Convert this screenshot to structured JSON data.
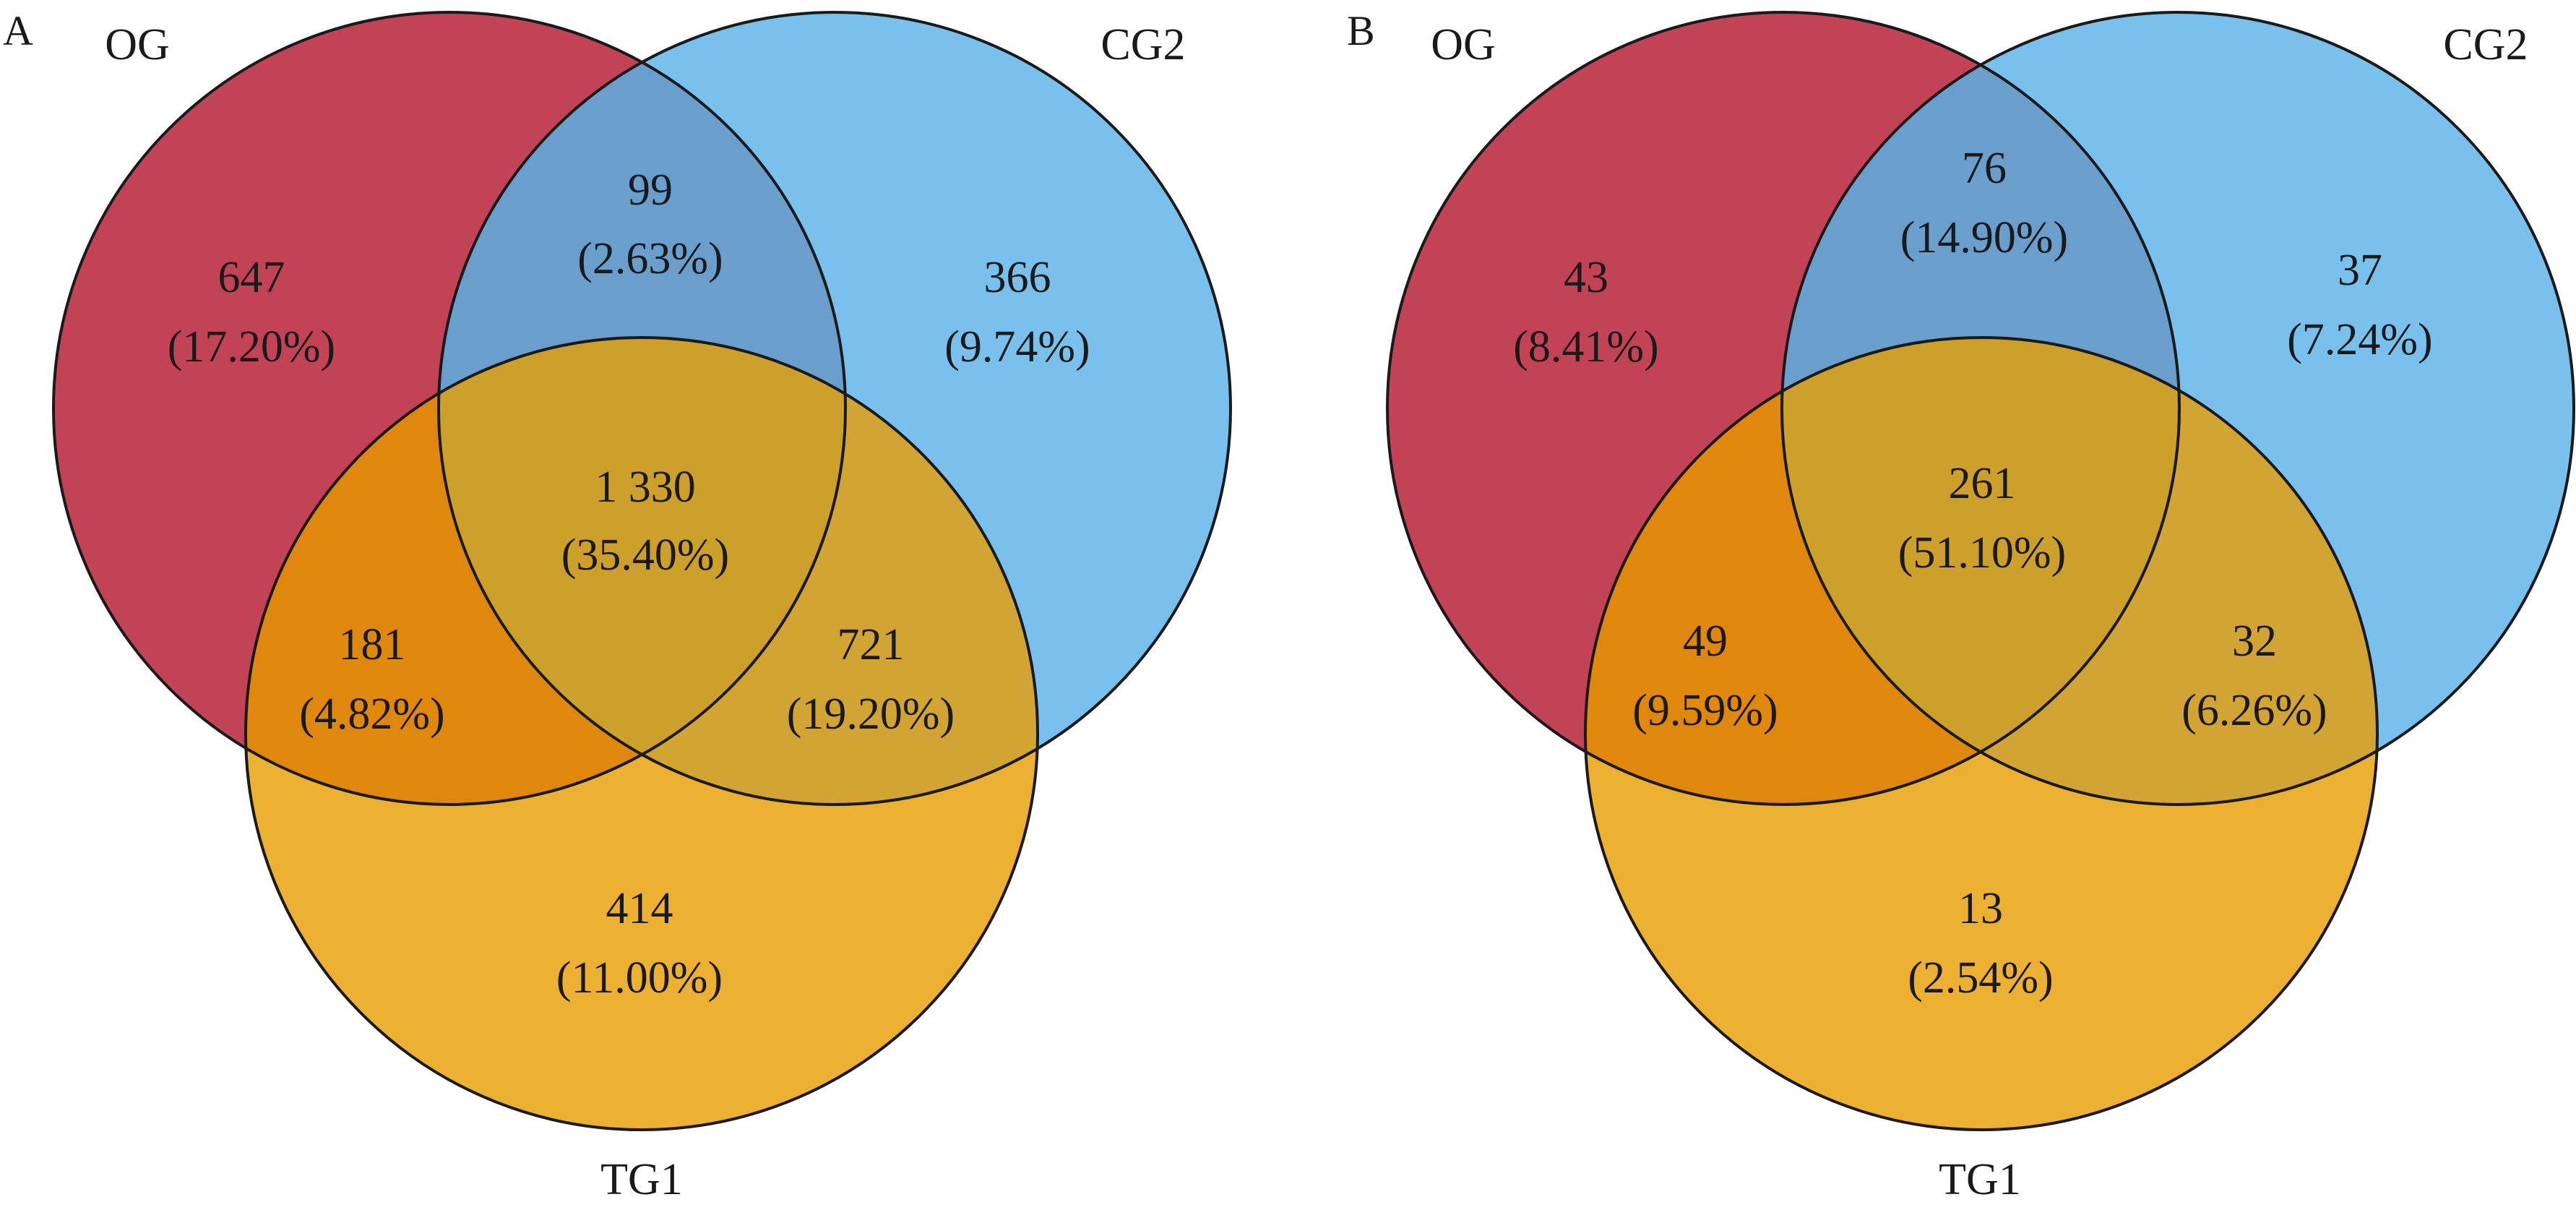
{
  "colors": {
    "og": "#c24356",
    "cg2": "#79c1ec",
    "tg1": "#ecb032",
    "og_cg2": "#6a9fcd",
    "og_tg1": "#e0880e",
    "cg2_tg1": "#d2a433",
    "all": "#cd9f2b",
    "outline": "#1a1a1a"
  },
  "panels": [
    {
      "letter": "A",
      "sets": {
        "og": "OG",
        "cg2": "CG2",
        "tg1": "TG1"
      },
      "regions": {
        "og_only": {
          "count": "647",
          "percent": "(17.20%)"
        },
        "og_cg2": {
          "count": "99",
          "percent": "(2.63%)"
        },
        "cg2_only": {
          "count": "366",
          "percent": "(9.74%)"
        },
        "all": {
          "count": "1 330",
          "percent": "(35.40%)"
        },
        "og_tg1": {
          "count": "181",
          "percent": "(4.82%)"
        },
        "cg2_tg1": {
          "count": "721",
          "percent": "(19.20%)"
        },
        "tg1_only": {
          "count": "414",
          "percent": "(11.00%)"
        }
      }
    },
    {
      "letter": "B",
      "sets": {
        "og": "OG",
        "cg2": "CG2",
        "tg1": "TG1"
      },
      "regions": {
        "og_only": {
          "count": "43",
          "percent": "(8.41%)"
        },
        "og_cg2": {
          "count": "76",
          "percent": "(14.90%)"
        },
        "cg2_only": {
          "count": "37",
          "percent": "(7.24%)"
        },
        "all": {
          "count": "261",
          "percent": "(51.10%)"
        },
        "og_tg1": {
          "count": "49",
          "percent": "(9.59%)"
        },
        "cg2_tg1": {
          "count": "32",
          "percent": "(6.26%)"
        },
        "tg1_only": {
          "count": "13",
          "percent": "(2.54%)"
        }
      }
    }
  ]
}
